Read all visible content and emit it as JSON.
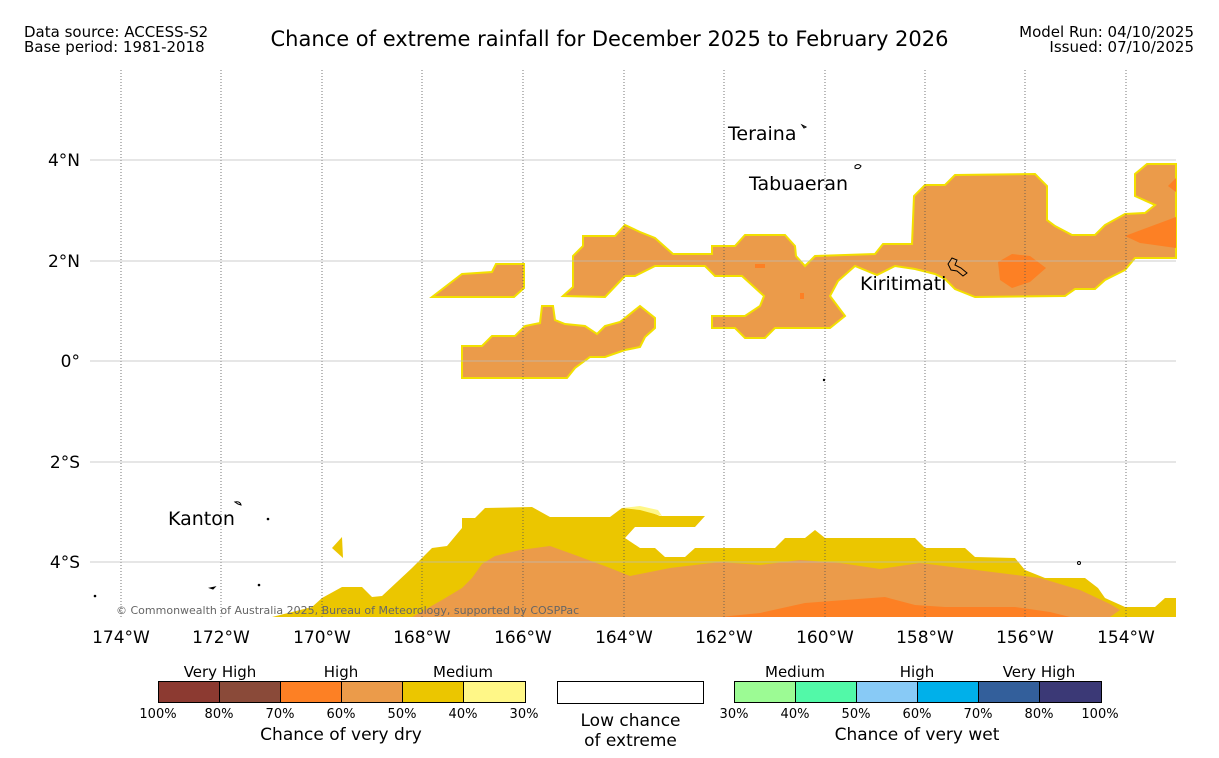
{
  "header": {
    "data_source": "Data source: ACCESS-S2",
    "base_period": "Base period: 1981-2018",
    "title": "Chance of extreme rainfall for December 2025 to February 2026",
    "model_run": "Model Run: 04/10/2025",
    "issued": "Issued: 07/10/2025"
  },
  "map": {
    "longitude_labels": [
      "174°W",
      "172°W",
      "170°W",
      "168°W",
      "166°W",
      "164°W",
      "162°W",
      "160°W",
      "158°W",
      "156°W",
      "154°W"
    ],
    "latitude_labels": [
      "4°N",
      "2°N",
      "0°",
      "2°S",
      "4°S"
    ],
    "places": [
      {
        "name": "Teraina"
      },
      {
        "name": "Tabuaeran"
      },
      {
        "name": "Kiritimati"
      },
      {
        "name": "Kanton"
      }
    ],
    "copyright": "© Commonwealth of Australia 2025, Bureau of Meteorology, supported by COSPPac"
  },
  "legend": {
    "dry": {
      "categories": [
        "Very High",
        "High",
        "Medium"
      ],
      "colors": [
        "#8c3a31",
        "#8a4a39",
        "#fd8024",
        "#eb9b4a",
        "#ebc600",
        "#fff787"
      ],
      "ticks": [
        "100%",
        "80%",
        "70%",
        "60%",
        "50%",
        "40%",
        "30%"
      ],
      "caption": "Chance of very dry"
    },
    "low": {
      "caption_line1": "Low chance",
      "caption_line2": "of extreme"
    },
    "wet": {
      "categories": [
        "Medium",
        "High",
        "Very High"
      ],
      "colors": [
        "#9cfb94",
        "#52f9a8",
        "#88caf6",
        "#00b0ea",
        "#335f9b",
        "#3b3976"
      ],
      "ticks": [
        "30%",
        "40%",
        "50%",
        "60%",
        "70%",
        "80%",
        "100%"
      ],
      "caption": "Chance of very wet"
    }
  }
}
